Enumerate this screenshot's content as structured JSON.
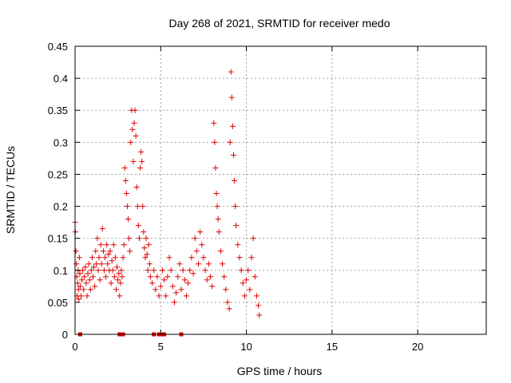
{
  "chart_data": {
    "type": "scatter",
    "title": "Day 268 of 2021, SRMTID for receiver medo",
    "xlabel": "GPS time / hours",
    "ylabel": "SRMTID / TECUs",
    "xlim": [
      0,
      24
    ],
    "ylim": [
      0,
      0.45
    ],
    "x_ticks": [
      "0",
      "5",
      "10",
      "15",
      "20"
    ],
    "y_ticks": [
      "0",
      "0.05",
      "0.1",
      "0.15",
      "0.2",
      "0.25",
      "0.3",
      "0.35",
      "0.4",
      "0.45"
    ],
    "grid": true,
    "legend": "none",
    "marker": "plus",
    "marker_color": "#e00000",
    "series": [
      {
        "marker": "plus",
        "points": [
          [
            0.0,
            0.175
          ],
          [
            0.02,
            0.16
          ],
          [
            0.05,
            0.13
          ],
          [
            0.08,
            0.11
          ],
          [
            0.1,
            0.09
          ],
          [
            0.12,
            0.06
          ],
          [
            0.15,
            0.08
          ],
          [
            0.18,
            0.1
          ],
          [
            0.2,
            0.07
          ],
          [
            0.22,
            0.055
          ],
          [
            0.25,
            0.12
          ],
          [
            0.28,
            0.095
          ],
          [
            0.3,
            0.075
          ],
          [
            0.35,
            0.06
          ],
          [
            0.4,
            0.085
          ],
          [
            0.45,
            0.1
          ],
          [
            0.5,
            0.07
          ],
          [
            0.55,
            0.09
          ],
          [
            0.6,
            0.105
          ],
          [
            0.65,
            0.08
          ],
          [
            0.7,
            0.06
          ],
          [
            0.75,
            0.095
          ],
          [
            0.8,
            0.11
          ],
          [
            0.85,
            0.085
          ],
          [
            0.9,
            0.07
          ],
          [
            0.95,
            0.1
          ],
          [
            1.0,
            0.12
          ],
          [
            1.05,
            0.09
          ],
          [
            1.1,
            0.105
          ],
          [
            1.15,
            0.075
          ],
          [
            1.2,
            0.13
          ],
          [
            1.25,
            0.11
          ],
          [
            1.3,
            0.15
          ],
          [
            1.35,
            0.1
          ],
          [
            1.4,
            0.12
          ],
          [
            1.45,
            0.085
          ],
          [
            1.5,
            0.14
          ],
          [
            1.55,
            0.11
          ],
          [
            1.6,
            0.165
          ],
          [
            1.65,
            0.13
          ],
          [
            1.7,
            0.1
          ],
          [
            1.75,
            0.12
          ],
          [
            1.8,
            0.09
          ],
          [
            1.85,
            0.14
          ],
          [
            1.9,
            0.11
          ],
          [
            1.95,
            0.125
          ],
          [
            2.0,
            0.1
          ],
          [
            2.05,
            0.13
          ],
          [
            2.1,
            0.08
          ],
          [
            2.15,
            0.115
          ],
          [
            2.2,
            0.1
          ],
          [
            2.25,
            0.14
          ],
          [
            2.3,
            0.09
          ],
          [
            2.35,
            0.12
          ],
          [
            2.4,
            0.07
          ],
          [
            2.45,
            0.105
          ],
          [
            2.5,
            0.085
          ],
          [
            2.55,
            0.095
          ],
          [
            2.6,
            0.06
          ],
          [
            2.65,
            0.08
          ],
          [
            2.7,
            0.1
          ],
          [
            2.75,
            0.09
          ],
          [
            2.8,
            0.12
          ],
          [
            2.85,
            0.14
          ],
          [
            2.9,
            0.26
          ],
          [
            2.95,
            0.24
          ],
          [
            3.0,
            0.22
          ],
          [
            3.05,
            0.2
          ],
          [
            3.1,
            0.18
          ],
          [
            3.15,
            0.15
          ],
          [
            3.2,
            0.13
          ],
          [
            3.25,
            0.3
          ],
          [
            3.3,
            0.35
          ],
          [
            3.35,
            0.32
          ],
          [
            3.4,
            0.27
          ],
          [
            3.45,
            0.33
          ],
          [
            3.5,
            0.35
          ],
          [
            3.55,
            0.31
          ],
          [
            3.6,
            0.23
          ],
          [
            3.65,
            0.2
          ],
          [
            3.7,
            0.17
          ],
          [
            3.75,
            0.15
          ],
          [
            3.8,
            0.26
          ],
          [
            3.85,
            0.285
          ],
          [
            3.9,
            0.27
          ],
          [
            3.95,
            0.2
          ],
          [
            4.0,
            0.16
          ],
          [
            4.05,
            0.135
          ],
          [
            4.1,
            0.12
          ],
          [
            4.15,
            0.15
          ],
          [
            4.2,
            0.125
          ],
          [
            4.25,
            0.1
          ],
          [
            4.3,
            0.14
          ],
          [
            4.35,
            0.11
          ],
          [
            4.4,
            0.09
          ],
          [
            4.5,
            0.08
          ],
          [
            4.6,
            0.1
          ],
          [
            4.7,
            0.07
          ],
          [
            4.8,
            0.09
          ],
          [
            4.9,
            0.06
          ],
          [
            5.0,
            0.075
          ],
          [
            5.1,
            0.1
          ],
          [
            5.2,
            0.085
          ],
          [
            5.3,
            0.06
          ],
          [
            5.4,
            0.09
          ],
          [
            5.5,
            0.12
          ],
          [
            5.6,
            0.1
          ],
          [
            5.7,
            0.075
          ],
          [
            5.8,
            0.05
          ],
          [
            5.9,
            0.065
          ],
          [
            6.0,
            0.09
          ],
          [
            6.1,
            0.11
          ],
          [
            6.2,
            0.07
          ],
          [
            6.3,
            0.1
          ],
          [
            6.4,
            0.085
          ],
          [
            6.5,
            0.06
          ],
          [
            6.6,
            0.08
          ],
          [
            6.7,
            0.1
          ],
          [
            6.8,
            0.12
          ],
          [
            6.9,
            0.095
          ],
          [
            7.0,
            0.15
          ],
          [
            7.1,
            0.13
          ],
          [
            7.2,
            0.11
          ],
          [
            7.3,
            0.16
          ],
          [
            7.4,
            0.14
          ],
          [
            7.5,
            0.12
          ],
          [
            7.6,
            0.1
          ],
          [
            7.7,
            0.085
          ],
          [
            7.8,
            0.11
          ],
          [
            7.9,
            0.09
          ],
          [
            8.0,
            0.075
          ],
          [
            8.1,
            0.33
          ],
          [
            8.15,
            0.3
          ],
          [
            8.2,
            0.26
          ],
          [
            8.25,
            0.22
          ],
          [
            8.3,
            0.2
          ],
          [
            8.35,
            0.18
          ],
          [
            8.4,
            0.16
          ],
          [
            8.5,
            0.13
          ],
          [
            8.6,
            0.11
          ],
          [
            8.7,
            0.09
          ],
          [
            8.8,
            0.07
          ],
          [
            8.9,
            0.05
          ],
          [
            9.0,
            0.04
          ],
          [
            9.05,
            0.3
          ],
          [
            9.1,
            0.41
          ],
          [
            9.15,
            0.37
          ],
          [
            9.2,
            0.325
          ],
          [
            9.25,
            0.28
          ],
          [
            9.3,
            0.24
          ],
          [
            9.35,
            0.2
          ],
          [
            9.4,
            0.17
          ],
          [
            9.5,
            0.14
          ],
          [
            9.6,
            0.12
          ],
          [
            9.7,
            0.1
          ],
          [
            9.8,
            0.08
          ],
          [
            9.9,
            0.06
          ],
          [
            10.0,
            0.085
          ],
          [
            10.1,
            0.1
          ],
          [
            10.2,
            0.07
          ],
          [
            10.3,
            0.12
          ],
          [
            10.4,
            0.15
          ],
          [
            10.5,
            0.09
          ],
          [
            10.6,
            0.06
          ],
          [
            10.7,
            0.045
          ],
          [
            10.75,
            0.03
          ]
        ]
      },
      {
        "marker": "square",
        "points": [
          [
            0.3,
            0.0
          ],
          [
            2.6,
            0.0
          ],
          [
            2.8,
            0.0
          ],
          [
            4.6,
            0.0
          ],
          [
            4.9,
            0.0
          ],
          [
            5.0,
            0.0
          ],
          [
            5.2,
            0.0
          ],
          [
            6.2,
            0.0
          ]
        ]
      }
    ]
  }
}
